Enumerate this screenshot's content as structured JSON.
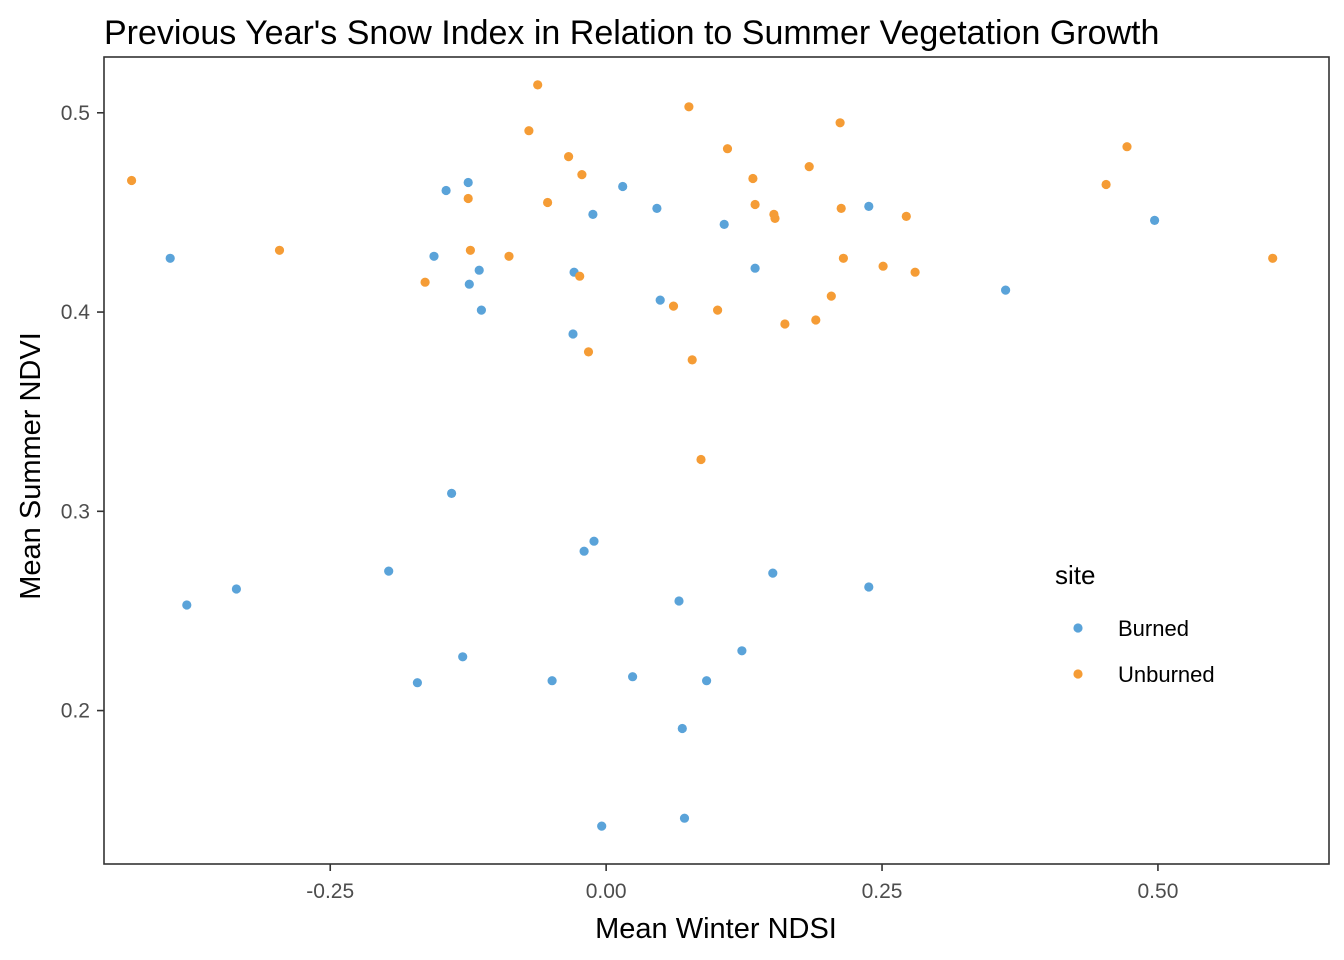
{
  "chart_data": {
    "type": "scatter",
    "title": "Previous Year's Snow Index in Relation to Summer Vegetation Growth",
    "xlabel": "Mean Winter NDSI",
    "ylabel": "Mean Summer NDVI",
    "xlim": [
      -0.455,
      0.655
    ],
    "ylim": [
      0.123,
      0.528
    ],
    "x_ticks": [
      -0.25,
      0.0,
      0.25,
      0.5
    ],
    "x_tick_labels": [
      "-0.25",
      "0.00",
      "0.25",
      "0.50"
    ],
    "y_ticks": [
      0.2,
      0.3,
      0.4,
      0.5
    ],
    "y_tick_labels": [
      "0.2",
      "0.3",
      "0.4",
      "0.5"
    ],
    "grid": false,
    "legend": {
      "title": "site",
      "placement": "right"
    },
    "series": [
      {
        "name": "Burned",
        "color": "#5AA3D9",
        "points": [
          [
            -0.395,
            0.427
          ],
          [
            -0.38,
            0.253
          ],
          [
            -0.335,
            0.261
          ],
          [
            -0.197,
            0.27
          ],
          [
            -0.171,
            0.214
          ],
          [
            -0.156,
            0.428
          ],
          [
            -0.145,
            0.461
          ],
          [
            -0.14,
            0.309
          ],
          [
            -0.13,
            0.227
          ],
          [
            -0.125,
            0.465
          ],
          [
            -0.124,
            0.414
          ],
          [
            -0.115,
            0.421
          ],
          [
            -0.113,
            0.401
          ],
          [
            -0.049,
            0.215
          ],
          [
            -0.03,
            0.389
          ],
          [
            -0.029,
            0.42
          ],
          [
            -0.02,
            0.28
          ],
          [
            -0.012,
            0.449
          ],
          [
            -0.011,
            0.285
          ],
          [
            -0.004,
            0.142
          ],
          [
            0.015,
            0.463
          ],
          [
            0.024,
            0.217
          ],
          [
            0.046,
            0.452
          ],
          [
            0.049,
            0.406
          ],
          [
            0.066,
            0.255
          ],
          [
            0.069,
            0.191
          ],
          [
            0.071,
            0.146
          ],
          [
            0.091,
            0.215
          ],
          [
            0.107,
            0.444
          ],
          [
            0.123,
            0.23
          ],
          [
            0.135,
            0.422
          ],
          [
            0.151,
            0.269
          ],
          [
            0.238,
            0.453
          ],
          [
            0.238,
            0.262
          ],
          [
            0.362,
            0.411
          ],
          [
            0.497,
            0.446
          ]
        ]
      },
      {
        "name": "Unburned",
        "color": "#F59C35",
        "points": [
          [
            -0.43,
            0.466
          ],
          [
            -0.296,
            0.431
          ],
          [
            -0.164,
            0.415
          ],
          [
            -0.125,
            0.457
          ],
          [
            -0.123,
            0.431
          ],
          [
            -0.088,
            0.428
          ],
          [
            -0.07,
            0.491
          ],
          [
            -0.062,
            0.514
          ],
          [
            -0.053,
            0.455
          ],
          [
            -0.034,
            0.478
          ],
          [
            -0.024,
            0.418
          ],
          [
            -0.022,
            0.469
          ],
          [
            -0.016,
            0.38
          ],
          [
            0.061,
            0.403
          ],
          [
            0.075,
            0.503
          ],
          [
            0.078,
            0.376
          ],
          [
            0.086,
            0.326
          ],
          [
            0.101,
            0.401
          ],
          [
            0.11,
            0.482
          ],
          [
            0.133,
            0.467
          ],
          [
            0.135,
            0.454
          ],
          [
            0.152,
            0.449
          ],
          [
            0.153,
            0.447
          ],
          [
            0.162,
            0.394
          ],
          [
            0.184,
            0.473
          ],
          [
            0.19,
            0.396
          ],
          [
            0.204,
            0.408
          ],
          [
            0.212,
            0.495
          ],
          [
            0.213,
            0.452
          ],
          [
            0.215,
            0.427
          ],
          [
            0.251,
            0.423
          ],
          [
            0.272,
            0.448
          ],
          [
            0.28,
            0.42
          ],
          [
            0.453,
            0.464
          ],
          [
            0.472,
            0.483
          ],
          [
            0.604,
            0.427
          ]
        ]
      }
    ]
  }
}
